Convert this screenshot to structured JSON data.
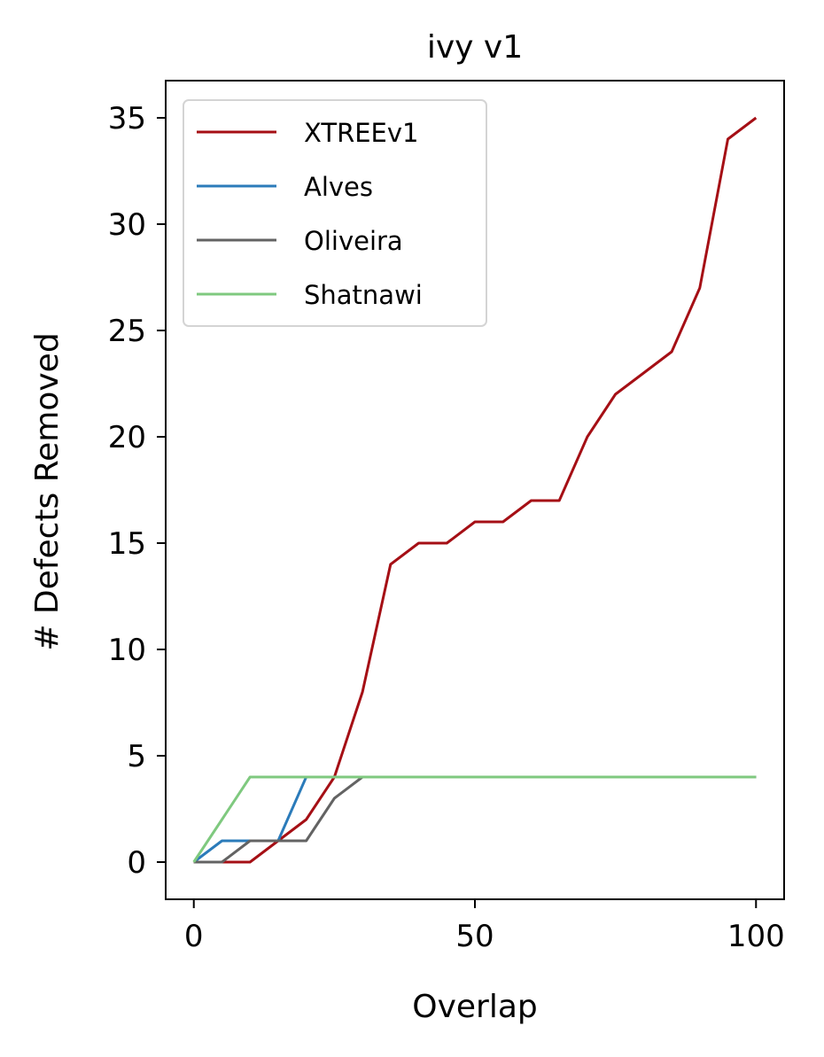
{
  "chart_data": {
    "type": "line",
    "title": "ivy v1",
    "xlabel": "Overlap",
    "ylabel": "# Defects Removed",
    "xlim": [
      -5,
      105
    ],
    "ylim": [
      -1.75,
      36.75
    ],
    "xticks": [
      0,
      50,
      100
    ],
    "yticks": [
      0,
      5,
      10,
      15,
      20,
      25,
      30,
      35
    ],
    "x_tick_labels": [
      "0",
      "50",
      "100"
    ],
    "y_tick_labels": [
      "0",
      "5",
      "10",
      "15",
      "20",
      "25",
      "30",
      "35"
    ],
    "grid": false,
    "legend_position": "top-left",
    "x": [
      0,
      5,
      10,
      15,
      20,
      25,
      30,
      35,
      40,
      45,
      50,
      55,
      60,
      65,
      70,
      75,
      80,
      85,
      90,
      95,
      100
    ],
    "series": [
      {
        "name": "XTREEv1",
        "color": "#a50f15",
        "values": [
          0,
          0,
          0,
          1,
          2,
          4,
          8,
          14,
          15,
          15,
          16,
          16,
          17,
          17,
          20,
          22,
          23,
          24,
          27,
          34,
          35
        ]
      },
      {
        "name": "Alves",
        "color": "#2b7bba",
        "values": [
          0,
          1,
          1,
          1,
          4,
          4,
          4,
          4,
          4,
          4,
          4,
          4,
          4,
          4,
          4,
          4,
          4,
          4,
          4,
          4,
          4
        ]
      },
      {
        "name": "Oliveira",
        "color": "#636363",
        "values": [
          0,
          0,
          1,
          1,
          1,
          3,
          4,
          4,
          4,
          4,
          4,
          4,
          4,
          4,
          4,
          4,
          4,
          4,
          4,
          4,
          4
        ]
      },
      {
        "name": "Shatnawi",
        "color": "#7fc97f",
        "values": [
          0,
          2,
          4,
          4,
          4,
          4,
          4,
          4,
          4,
          4,
          4,
          4,
          4,
          4,
          4,
          4,
          4,
          4,
          4,
          4,
          4
        ]
      }
    ]
  }
}
